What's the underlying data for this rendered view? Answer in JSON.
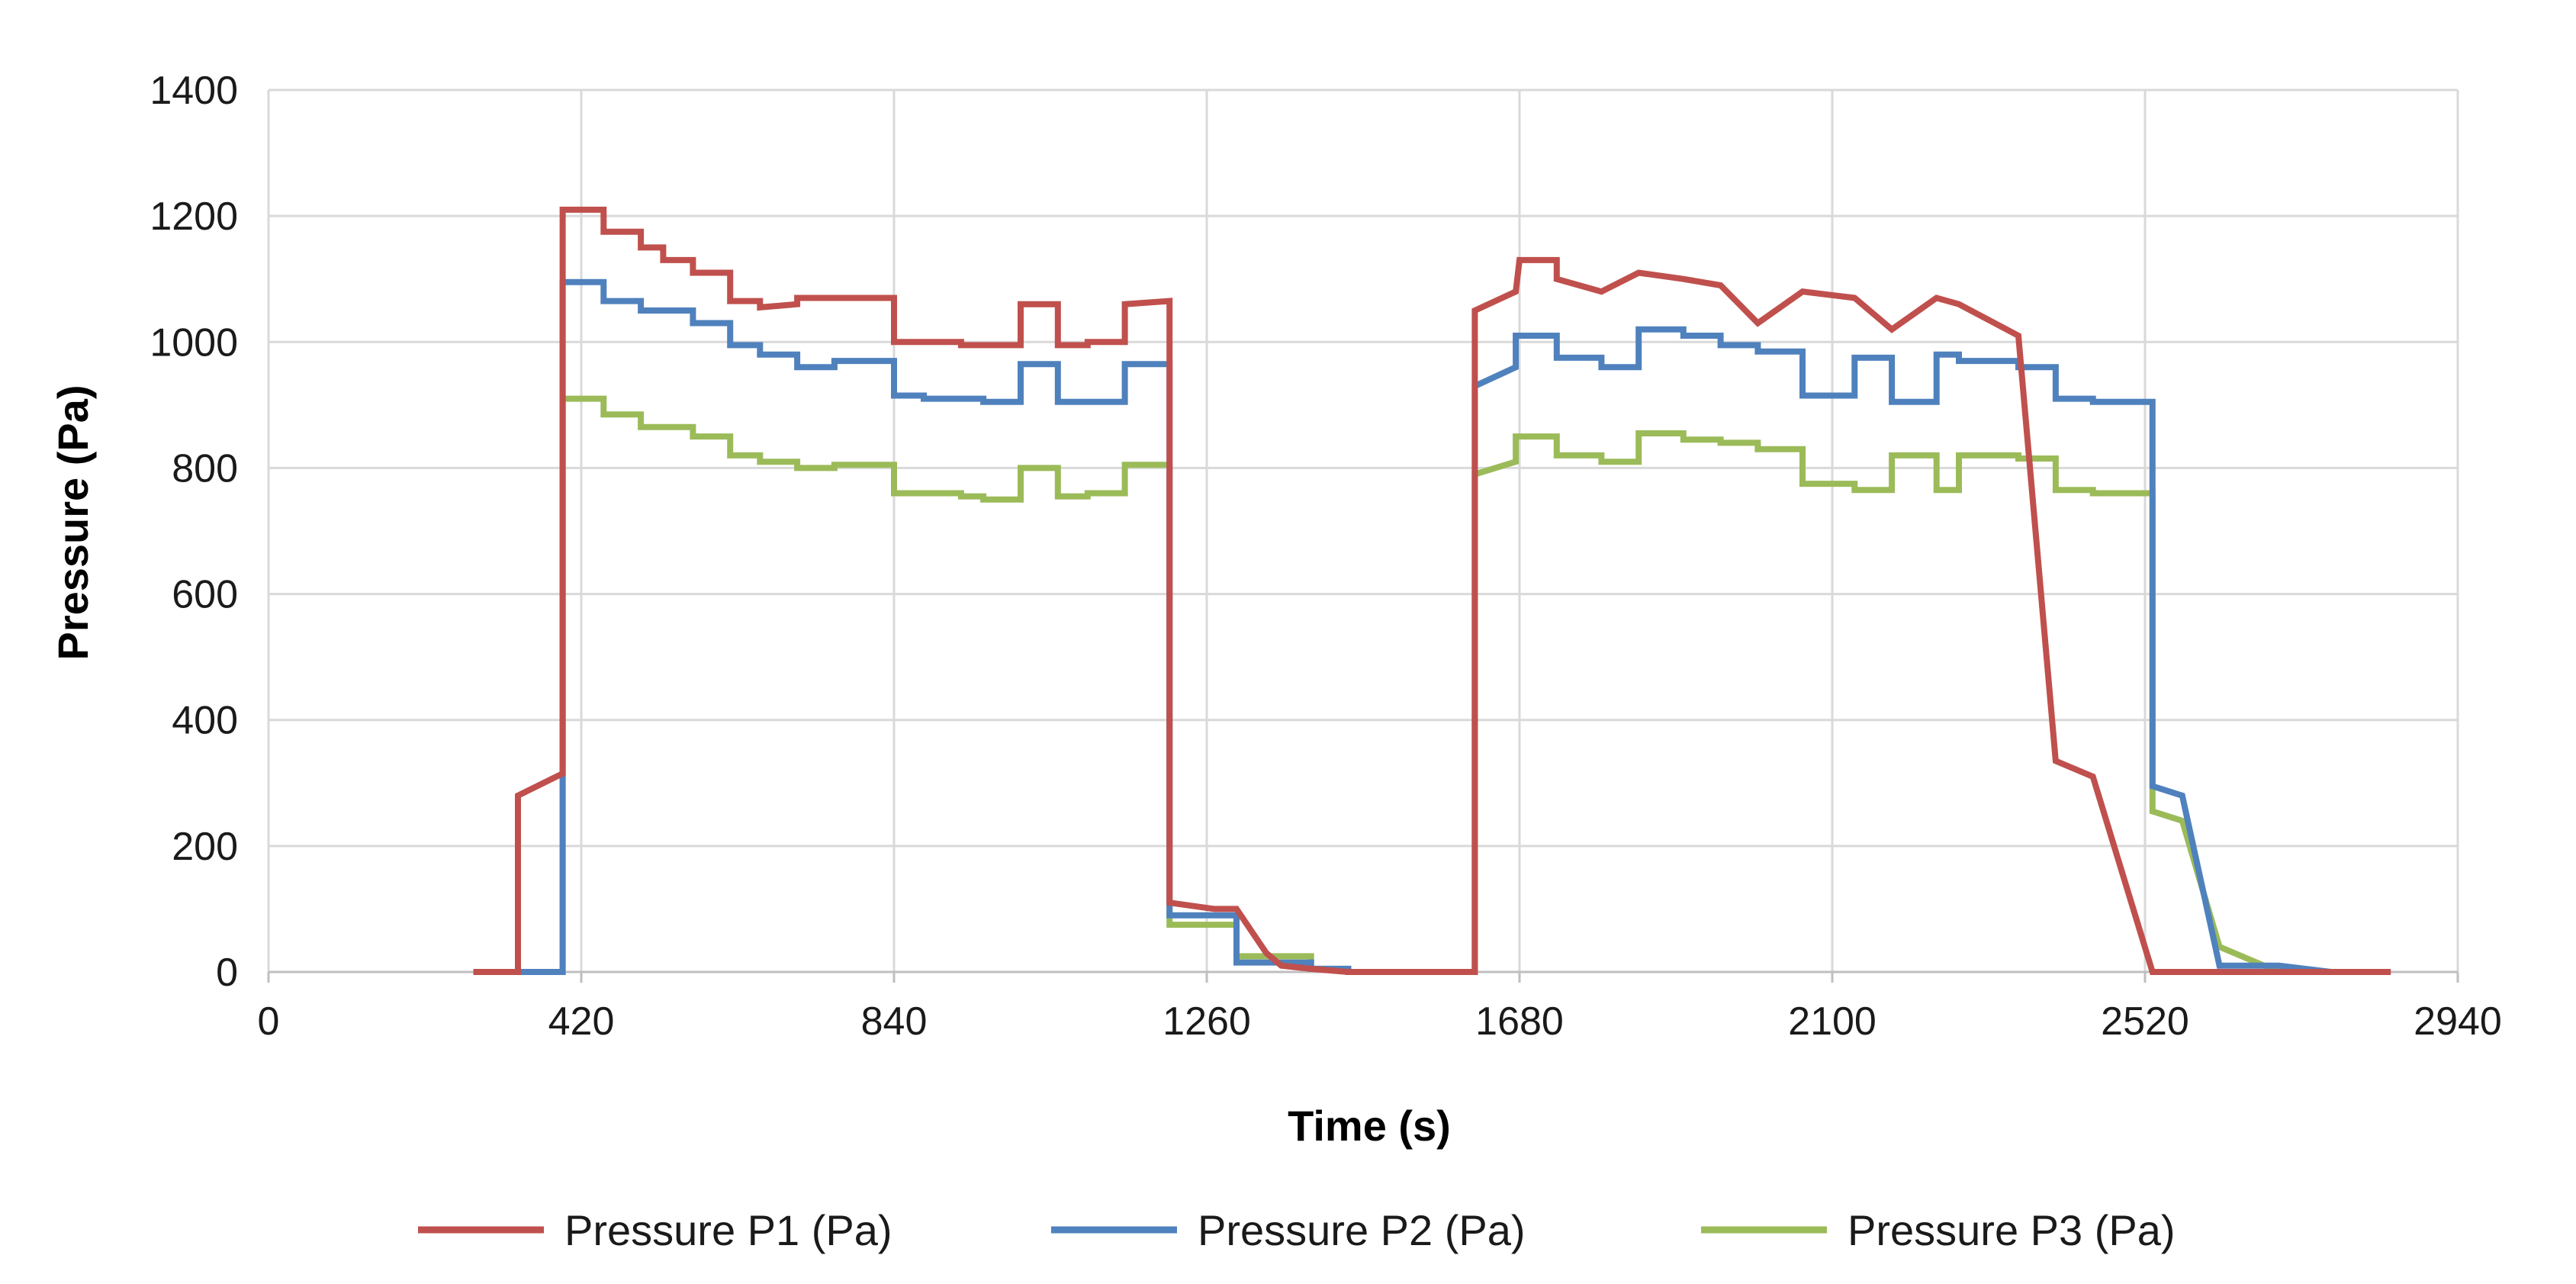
{
  "chart_data": {
    "type": "line",
    "title": "",
    "xlabel": "Time (s)",
    "ylabel": "Pressure (Pa)",
    "xlim": [
      0,
      2940
    ],
    "ylim": [
      0,
      1400
    ],
    "x_ticks": [
      0,
      420,
      840,
      1260,
      1680,
      2100,
      2520,
      2940
    ],
    "y_ticks": [
      0,
      200,
      400,
      600,
      800,
      1000,
      1200,
      1400
    ],
    "grid": true,
    "legend_position": "bottom",
    "series": [
      {
        "name": "Pressure P1 (Pa)",
        "color": "#c0504d",
        "x": [
          275,
          335,
          335,
          395,
          395,
          400,
          400,
          450,
          450,
          500,
          500,
          530,
          530,
          570,
          570,
          620,
          620,
          660,
          660,
          710,
          710,
          760,
          760,
          840,
          840,
          880,
          880,
          930,
          930,
          960,
          960,
          1010,
          1010,
          1060,
          1060,
          1100,
          1100,
          1150,
          1150,
          1210,
          1210,
          1270,
          1270,
          1300,
          1300,
          1340,
          1340,
          1360,
          1360,
          1400,
          1400,
          1450,
          1450,
          1620,
          1620,
          1675,
          1675,
          1680,
          1680,
          1730,
          1730,
          1790,
          1790,
          1840,
          1840,
          1900,
          1900,
          1950,
          1950,
          2000,
          2000,
          2060,
          2060,
          2130,
          2130,
          2180,
          2180,
          2240,
          2240,
          2270,
          2270,
          2350,
          2350,
          2400,
          2400,
          2450,
          2450,
          2530,
          2530,
          2570,
          2570,
          2620,
          2620,
          2700,
          2700,
          2720,
          2720,
          2770,
          2770,
          2850
        ],
        "y": [
          0,
          0,
          280,
          315,
          1210,
          1210,
          1210,
          1210,
          1175,
          1175,
          1150,
          1150,
          1130,
          1130,
          1110,
          1110,
          1065,
          1065,
          1055,
          1060,
          1070,
          1070,
          1070,
          1070,
          1000,
          1000,
          1000,
          1000,
          995,
          995,
          995,
          995,
          1060,
          1060,
          995,
          995,
          1000,
          1000,
          1060,
          1065,
          110,
          100,
          100,
          100,
          100,
          30,
          30,
          10,
          10,
          5,
          5,
          0,
          0,
          0,
          1050,
          1080,
          1080,
          1130,
          1130,
          1130,
          1100,
          1080,
          1080,
          1110,
          1110,
          1100,
          1100,
          1090,
          1090,
          1030,
          1030,
          1080,
          1080,
          1070,
          1070,
          1020,
          1020,
          1070,
          1070,
          1060,
          1060,
          1010,
          1010,
          335,
          335,
          310,
          310,
          0,
          0,
          0,
          0,
          0,
          0,
          0,
          0,
          0,
          0,
          0,
          0,
          0
        ]
      },
      {
        "name": "Pressure P2 (Pa)",
        "color": "#4f81bd",
        "x": [
          275,
          395,
          395,
          450,
          450,
          500,
          500,
          570,
          570,
          620,
          620,
          660,
          660,
          710,
          710,
          760,
          760,
          840,
          840,
          880,
          880,
          930,
          930,
          960,
          960,
          1010,
          1010,
          1060,
          1060,
          1100,
          1100,
          1150,
          1150,
          1210,
          1210,
          1270,
          1270,
          1300,
          1300,
          1340,
          1340,
          1400,
          1400,
          1450,
          1450,
          1620,
          1620,
          1675,
          1675,
          1730,
          1730,
          1790,
          1790,
          1840,
          1840,
          1900,
          1900,
          1950,
          1950,
          2000,
          2000,
          2060,
          2060,
          2130,
          2130,
          2180,
          2180,
          2240,
          2240,
          2270,
          2270,
          2350,
          2350,
          2400,
          2400,
          2450,
          2450,
          2530,
          2530,
          2570,
          2570,
          2620,
          2620,
          2700,
          2700,
          2770,
          2770,
          2850
        ],
        "y": [
          0,
          0,
          1095,
          1095,
          1065,
          1065,
          1050,
          1050,
          1030,
          1030,
          995,
          995,
          980,
          980,
          960,
          960,
          970,
          970,
          915,
          915,
          910,
          910,
          910,
          910,
          905,
          905,
          965,
          965,
          905,
          905,
          905,
          905,
          965,
          965,
          90,
          90,
          90,
          90,
          15,
          15,
          15,
          15,
          5,
          5,
          0,
          0,
          930,
          960,
          1010,
          1010,
          975,
          975,
          960,
          960,
          1020,
          1020,
          1010,
          1010,
          995,
          995,
          985,
          985,
          915,
          915,
          975,
          975,
          905,
          905,
          980,
          980,
          970,
          970,
          960,
          960,
          910,
          910,
          905,
          905,
          295,
          280,
          280,
          10,
          10,
          10,
          10,
          0,
          0,
          0
        ]
      },
      {
        "name": "Pressure P3 (Pa)",
        "color": "#9bbb59",
        "x": [
          275,
          395,
          395,
          450,
          450,
          500,
          500,
          570,
          570,
          620,
          620,
          660,
          660,
          710,
          710,
          760,
          760,
          840,
          840,
          880,
          880,
          930,
          930,
          960,
          960,
          1010,
          1010,
          1060,
          1060,
          1100,
          1100,
          1150,
          1150,
          1210,
          1210,
          1270,
          1270,
          1300,
          1300,
          1340,
          1340,
          1400,
          1400,
          1450,
          1450,
          1620,
          1620,
          1675,
          1675,
          1730,
          1730,
          1790,
          1790,
          1840,
          1840,
          1900,
          1900,
          1950,
          1950,
          2000,
          2000,
          2060,
          2060,
          2130,
          2130,
          2180,
          2180,
          2240,
          2240,
          2270,
          2270,
          2350,
          2350,
          2400,
          2400,
          2450,
          2450,
          2530,
          2530,
          2570,
          2570,
          2620,
          2620,
          2700,
          2700,
          2770,
          2770,
          2850
        ],
        "y": [
          0,
          0,
          910,
          910,
          885,
          885,
          865,
          865,
          850,
          850,
          820,
          820,
          810,
          810,
          800,
          800,
          805,
          805,
          760,
          760,
          760,
          760,
          755,
          755,
          750,
          750,
          800,
          800,
          755,
          755,
          760,
          760,
          805,
          805,
          75,
          75,
          75,
          75,
          25,
          25,
          25,
          25,
          5,
          5,
          0,
          0,
          790,
          810,
          850,
          850,
          820,
          820,
          810,
          810,
          855,
          855,
          845,
          845,
          840,
          840,
          830,
          830,
          775,
          775,
          765,
          765,
          820,
          820,
          765,
          765,
          820,
          820,
          815,
          815,
          765,
          765,
          760,
          760,
          255,
          240,
          240,
          40,
          40,
          0,
          0,
          0,
          0,
          0
        ]
      }
    ]
  }
}
